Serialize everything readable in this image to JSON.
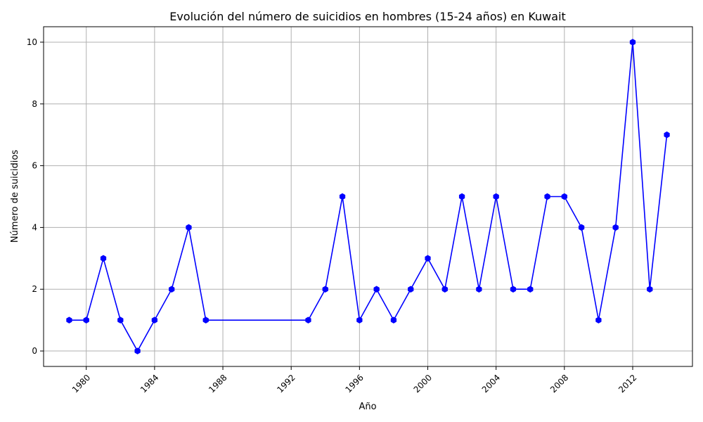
{
  "chart_data": {
    "type": "line",
    "title": "Evolución del número de suicidios en hombres (15-24 años) en Kuwait",
    "xlabel": "Año",
    "ylabel": "Número de suicidios",
    "xlim": [
      1977.5,
      2015.5
    ],
    "ylim": [
      -0.5,
      10.5
    ],
    "grid": true,
    "x_ticks": [
      1980,
      1984,
      1988,
      1992,
      1996,
      2000,
      2004,
      2008,
      2012
    ],
    "y_ticks": [
      0,
      2,
      4,
      6,
      8,
      10
    ],
    "series": [
      {
        "color": "#0000ff",
        "marker": "hexagon",
        "points": [
          {
            "x": 1979,
            "y": 1
          },
          {
            "x": 1980,
            "y": 1
          },
          {
            "x": 1981,
            "y": 3
          },
          {
            "x": 1982,
            "y": 1
          },
          {
            "x": 1983,
            "y": 0
          },
          {
            "x": 1984,
            "y": 1
          },
          {
            "x": 1985,
            "y": 2
          },
          {
            "x": 1986,
            "y": 4
          },
          {
            "x": 1987,
            "y": 1
          },
          {
            "x": 1993,
            "y": 1
          },
          {
            "x": 1994,
            "y": 2
          },
          {
            "x": 1995,
            "y": 5
          },
          {
            "x": 1996,
            "y": 1
          },
          {
            "x": 1997,
            "y": 2
          },
          {
            "x": 1998,
            "y": 1
          },
          {
            "x": 1999,
            "y": 2
          },
          {
            "x": 2000,
            "y": 3
          },
          {
            "x": 2001,
            "y": 2
          },
          {
            "x": 2002,
            "y": 5
          },
          {
            "x": 2003,
            "y": 2
          },
          {
            "x": 2004,
            "y": 5
          },
          {
            "x": 2005,
            "y": 2
          },
          {
            "x": 2006,
            "y": 2
          },
          {
            "x": 2007,
            "y": 5
          },
          {
            "x": 2008,
            "y": 5
          },
          {
            "x": 2009,
            "y": 4
          },
          {
            "x": 2010,
            "y": 1
          },
          {
            "x": 2011,
            "y": 4
          },
          {
            "x": 2012,
            "y": 10
          },
          {
            "x": 2013,
            "y": 2
          },
          {
            "x": 2014,
            "y": 7
          }
        ]
      }
    ]
  }
}
